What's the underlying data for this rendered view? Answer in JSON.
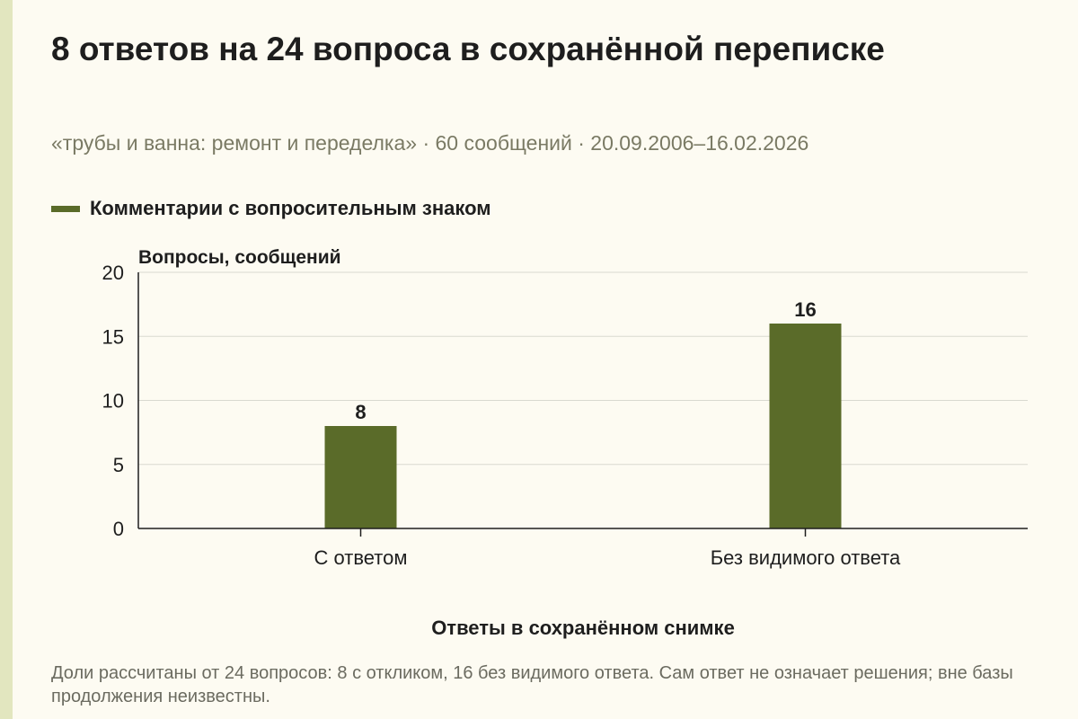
{
  "title": "8 ответов на 24 вопроса в сохранённой переписке",
  "subtitle": "«трубы и ванна: ремонт и переделка» · 60 сообщений · 20.09.2006–16.02.2026",
  "footnote": "Доли рассчитаны от 24 вопросов: 8 с откликом, 16 без видимого ответа. Сам ответ не означает решения; вне базы продолжения неизвестны.",
  "colors": {
    "bar": "#5a6b29",
    "background": "#fdfbf2",
    "stripe": "#e2e6bf",
    "grid": "#d9d9d0",
    "axis": "#1e1e1e"
  },
  "chart_data": {
    "type": "bar",
    "categories": [
      "С ответом",
      "Без видимого ответа"
    ],
    "series": [
      {
        "name": "Комментарии с вопросительным знаком",
        "values": [
          8,
          16
        ]
      }
    ],
    "data_labels": [
      "8",
      "16"
    ],
    "ylabel": "Вопросы, сообщений",
    "xlabel": "Ответы в сохранённом снимке",
    "ylim": [
      0,
      20
    ],
    "yticks": [
      0,
      5,
      10,
      15,
      20
    ],
    "grid": true,
    "legend_position": "top-left"
  }
}
